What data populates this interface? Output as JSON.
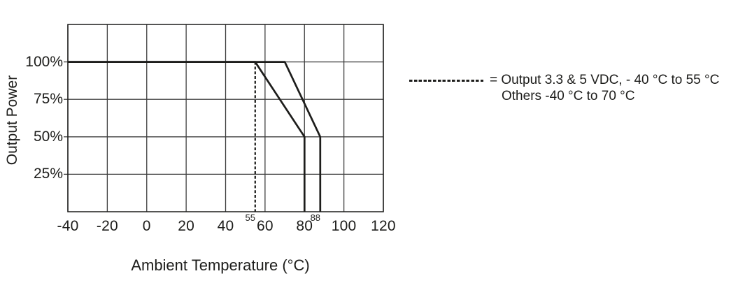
{
  "figure": {
    "background": "#ffffff"
  },
  "colors": {
    "line": "#1d1d1b",
    "grid": "#3f3f3f",
    "text": "#1d1d1b",
    "background": "#ffffff"
  },
  "legend": {
    "symbol": "=",
    "line1": "Output 3.3 & 5 VDC, - 40 °C to 55 °C",
    "line2": "Others -40 °C to 70 °C"
  },
  "chart_data": {
    "type": "line",
    "title": "",
    "xlabel": "Ambient Temperature (°C)",
    "ylabel": "Output Power",
    "xlim": [
      -40,
      120
    ],
    "ylim": [
      0,
      125
    ],
    "grid": true,
    "legend_position": "right",
    "x_ticks": [
      {
        "v": -40,
        "label": "-40"
      },
      {
        "v": -20,
        "label": "-20"
      },
      {
        "v": 0,
        "label": "0"
      },
      {
        "v": 20,
        "label": "20"
      },
      {
        "v": 40,
        "label": "40"
      },
      {
        "v": 60,
        "label": "60"
      },
      {
        "v": 80,
        "label": "80"
      },
      {
        "v": 100,
        "label": "100"
      },
      {
        "v": 120,
        "label": "120"
      }
    ],
    "y_ticks": [
      {
        "v": 25,
        "label": "25%"
      },
      {
        "v": 50,
        "label": "50%"
      },
      {
        "v": 75,
        "label": "75%"
      },
      {
        "v": 100,
        "label": "100%"
      }
    ],
    "x_minor_labels": [
      {
        "v": 55,
        "label": "55"
      },
      {
        "v": 88,
        "label": "88"
      }
    ],
    "series": [
      {
        "name": "output-3v3-5vdc-derating",
        "legend": "Output 3.3 & 5 VDC, - 40 °C to 55 °C",
        "style": "solid",
        "points": [
          [
            -40,
            100
          ],
          [
            55,
            100
          ],
          [
            80,
            50
          ],
          [
            80,
            0
          ]
        ]
      },
      {
        "name": "others-derating",
        "legend": "Others -40 °C to 70 °C",
        "style": "solid",
        "points": [
          [
            -40,
            100
          ],
          [
            70,
            100
          ],
          [
            88,
            50
          ],
          [
            88,
            0
          ]
        ]
      },
      {
        "name": "55c-limit-marker",
        "legend": "",
        "style": "dashed",
        "points": [
          [
            55,
            100
          ],
          [
            55,
            0
          ]
        ]
      }
    ]
  }
}
